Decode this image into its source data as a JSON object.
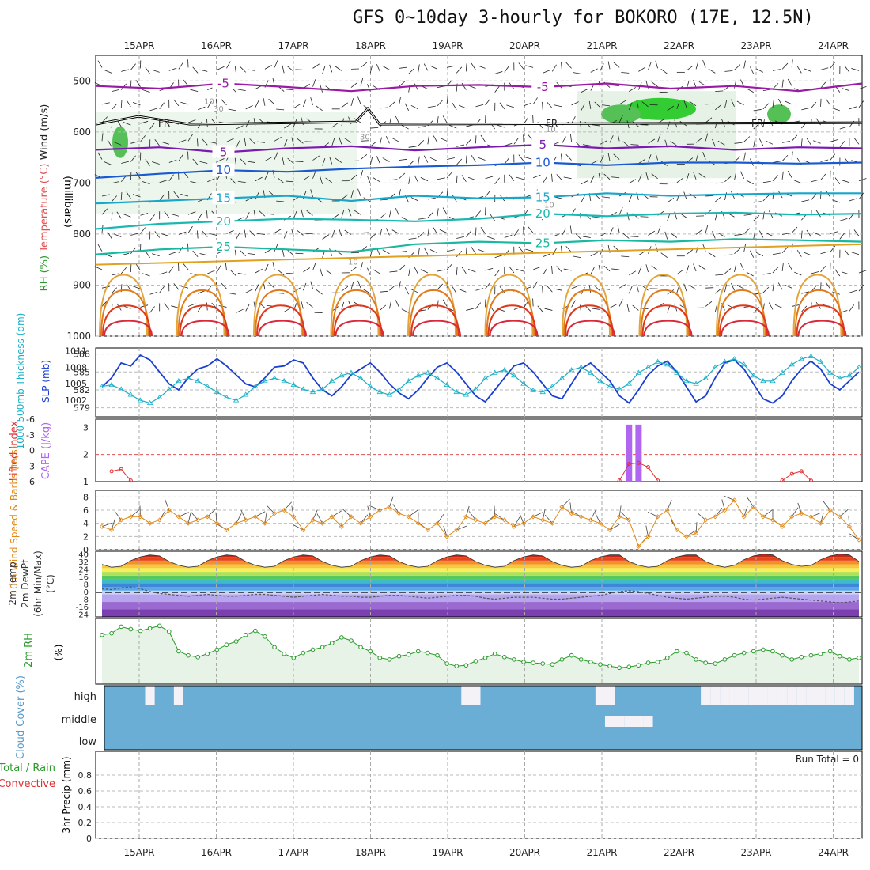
{
  "title": "GFS 0~10day 3-hourly for BOKORO (17E, 12.5N)",
  "chart_data": [
    {
      "id": "upper",
      "type": "contour",
      "ylabel_parts": [
        "Wind (m/s)",
        "Temperature (°C)",
        "RH (%)"
      ],
      "ylabel_units": "(millibars)",
      "x_labels": [
        "15APR",
        "16APR",
        "17APR",
        "18APR",
        "19APR",
        "20APR",
        "21APR",
        "22APR",
        "23APR",
        "24APR"
      ],
      "y_ticks": [
        500,
        600,
        700,
        800,
        900,
        1000
      ],
      "ylim": [
        450,
        1000
      ],
      "freezing_label": "FR",
      "freezing_level_mb": 585,
      "isotherms": [
        {
          "label": "-5",
          "mb": [
            510,
            515,
            505,
            512,
            520,
            510,
            508,
            512,
            505,
            515,
            510,
            520,
            505
          ],
          "color": "#9a1aa6"
        },
        {
          "label": "5",
          "mb": [
            635,
            630,
            640,
            632,
            628,
            636,
            630,
            625,
            632,
            628,
            635,
            630,
            632
          ],
          "color": "#7a1ab0"
        },
        {
          "label": "10",
          "mb": [
            690,
            682,
            675,
            678,
            672,
            668,
            665,
            660,
            665,
            660,
            660,
            662,
            660
          ],
          "color": "#1a5ad0"
        },
        {
          "label": "15",
          "mb": [
            740,
            735,
            730,
            725,
            735,
            725,
            730,
            728,
            720,
            725,
            722,
            720,
            720
          ],
          "color": "#19a6c8"
        },
        {
          "label": "20",
          "mb": [
            790,
            780,
            775,
            770,
            772,
            775,
            770,
            760,
            765,
            760,
            758,
            762,
            760
          ],
          "color": "#1ab8b0"
        },
        {
          "label": "25",
          "mb": [
            840,
            830,
            825,
            830,
            835,
            820,
            815,
            818,
            812,
            815,
            810,
            812,
            815
          ],
          "color": "#1ab8a0"
        }
      ],
      "contour_labels": [
        "-5",
        "5",
        "10",
        "15",
        "20",
        "25",
        "10",
        "30"
      ],
      "rh_labels": [
        "10",
        "30"
      ]
    },
    {
      "id": "thickness-slp",
      "type": "line",
      "ylabel_left": "1000-500mb Thickness (dm)",
      "ylabel_right": "SLP (mb)",
      "left_ticks": [
        579,
        582,
        585,
        588
      ],
      "right_ticks": [
        1002,
        1005,
        1008,
        1011
      ],
      "series": [
        {
          "name": "1000-500mb Thickness (dm)",
          "color": "#1a3fd0",
          "values": [
            582.5,
            584,
            586.5,
            586,
            587.8,
            587,
            585,
            583,
            582,
            584,
            585.5,
            586,
            587.2,
            586,
            584.5,
            583,
            582.5,
            584,
            585.8,
            586,
            587,
            586.5,
            584,
            582,
            581,
            582.5,
            584.5,
            585.5,
            586.5,
            585,
            583,
            581.5,
            580.5,
            582,
            584,
            585.8,
            586.5,
            585,
            583,
            581,
            580,
            582,
            584,
            586,
            586.5,
            585,
            583,
            581,
            580.5,
            583,
            585.5,
            586.5,
            585,
            583.5,
            581,
            579.8,
            582,
            584.5,
            586,
            586.8,
            585,
            582.5,
            580,
            581,
            584,
            586.5,
            587,
            585.5,
            583,
            580.5,
            579.8,
            581,
            583.5,
            585.5,
            586.8,
            585.5,
            583,
            582,
            583.5,
            585
          ]
        },
        {
          "name": "SLP (mb)",
          "color": "#1ab0c8",
          "values": [
            1004.5,
            1004.8,
            1004,
            1003,
            1002,
            1001.5,
            1002.5,
            1004,
            1005.5,
            1006,
            1005.5,
            1004.5,
            1003.5,
            1002.5,
            1002,
            1003,
            1004.5,
            1005.5,
            1006,
            1005.5,
            1004.8,
            1004,
            1003.5,
            1004,
            1005.5,
            1006.5,
            1007,
            1006,
            1004.5,
            1003.5,
            1003,
            1004,
            1005.5,
            1006.5,
            1007,
            1006,
            1004.8,
            1003.5,
            1003,
            1004,
            1006,
            1007,
            1007.5,
            1006.5,
            1005,
            1003.8,
            1003.5,
            1004.5,
            1006,
            1007.5,
            1008,
            1007,
            1005.5,
            1004.5,
            1004,
            1005,
            1007,
            1008,
            1009,
            1008.5,
            1007,
            1005.5,
            1005,
            1006,
            1008,
            1009,
            1009.5,
            1008.5,
            1006.5,
            1005.5,
            1005.5,
            1007,
            1008.5,
            1009.5,
            1010,
            1009,
            1007,
            1006,
            1006.5,
            1008
          ]
        }
      ]
    },
    {
      "id": "cape-li",
      "type": "bar+line",
      "ylabel_left": "Lifted Index",
      "ylabel_right": "CAPE (J/kg)",
      "left_ticks": [
        "-6",
        "-3",
        "0",
        "3",
        "6"
      ],
      "right_ticks": [
        "1",
        "2",
        "3"
      ],
      "cape_bars": [
        {
          "index": 55,
          "value": 3.1
        },
        {
          "index": 56,
          "value": 3.1
        }
      ],
      "lifted_index": [
        {
          "index": 1,
          "value": 4.0
        },
        {
          "index": 2,
          "value": 3.6
        },
        {
          "index": 3,
          "value": 5.8
        },
        {
          "index": 54,
          "value": 5.8
        },
        {
          "index": 55,
          "value": 2.6
        },
        {
          "index": 56,
          "value": 2.4
        },
        {
          "index": 57,
          "value": 3.2
        },
        {
          "index": 58,
          "value": 5.8
        },
        {
          "index": 71,
          "value": 5.8
        },
        {
          "index": 72,
          "value": 4.5
        },
        {
          "index": 73,
          "value": 4.0
        },
        {
          "index": 74,
          "value": 5.8
        }
      ],
      "li_reference": 0
    },
    {
      "id": "wind10m",
      "type": "line",
      "ylabel": "10m Wind Speed & Barbs (m/s)",
      "y_ticks": [
        0,
        2,
        4,
        6,
        8
      ],
      "ylim": [
        0,
        9
      ],
      "series": [
        {
          "name": "10m Wind Speed",
          "color": "#e08a1a",
          "values": [
            3.5,
            3,
            4.5,
            5,
            5,
            4,
            4.5,
            6,
            5,
            4,
            4.5,
            5,
            4,
            3,
            4,
            4.5,
            5,
            4,
            5.5,
            6,
            5,
            3,
            4.5,
            4,
            5,
            3.5,
            5,
            4,
            5,
            6,
            6.5,
            5.5,
            5,
            4,
            3,
            4,
            2,
            3,
            5,
            4.5,
            4,
            5,
            4.5,
            3.5,
            4,
            5,
            4.5,
            4,
            6.5,
            5.5,
            5,
            4.5,
            4,
            3,
            5,
            4.5,
            0.5,
            2,
            5,
            6,
            3,
            2,
            2.5,
            4.5,
            5,
            6,
            7.5,
            5,
            6.5,
            5,
            4.5,
            3.5,
            5,
            5.5,
            5,
            4,
            6,
            5,
            3.5,
            1.5
          ]
        }
      ]
    },
    {
      "id": "temp2m",
      "type": "area",
      "ylabel_lines": [
        "2m Temp",
        "2m DewPt",
        "(6hr Min/Max)",
        "(°C)"
      ],
      "y_ticks": [
        40,
        32,
        24,
        16,
        8,
        0,
        -8,
        -16,
        -24
      ],
      "ylim": [
        -26,
        44
      ],
      "series": [
        {
          "name": "2m Temp",
          "values": [
            30,
            27,
            28,
            34,
            38,
            40,
            39,
            33,
            29,
            27,
            28,
            34,
            38,
            40,
            39,
            33,
            29,
            27,
            28,
            34,
            38,
            40,
            39,
            33,
            29,
            27,
            28,
            34,
            38,
            40,
            39,
            33,
            29,
            27,
            28,
            34,
            38,
            40,
            39,
            33,
            29,
            27,
            28,
            34,
            38,
            40,
            39,
            33,
            29,
            27,
            28,
            34,
            38,
            40,
            40,
            33,
            29,
            27,
            28,
            34,
            38,
            40,
            40,
            33,
            29,
            27,
            29,
            35,
            39,
            41,
            40,
            34,
            30,
            28,
            29,
            35,
            39,
            41,
            40,
            33
          ]
        },
        {
          "name": "2m DewPt",
          "values": [
            4,
            3,
            5,
            6,
            4,
            1,
            -1,
            -2,
            -3,
            -4,
            -3,
            -2,
            -3,
            -4,
            -4,
            -3,
            -2,
            -2,
            -3,
            -4,
            -5,
            -4,
            -3,
            -2,
            -3,
            -4,
            -4,
            -5,
            -5,
            -4,
            -3,
            -3,
            -4,
            -5,
            -6,
            -5,
            -4,
            -3,
            -3,
            -4,
            -6,
            -7,
            -6,
            -5,
            -5,
            -5,
            -6,
            -7,
            -7,
            -6,
            -5,
            -4,
            -3,
            -1,
            1,
            2,
            1,
            -1,
            -3,
            -5,
            -6,
            -7,
            -6,
            -5,
            -4,
            -4,
            -5,
            -7,
            -8,
            -7,
            -6,
            -5,
            -6,
            -7,
            -8,
            -9,
            -10,
            -11,
            -10,
            -9
          ]
        }
      ]
    },
    {
      "id": "rh2m",
      "type": "area",
      "ylabel": "2m RH",
      "yunit": "(%)",
      "ylim": [
        0,
        80
      ],
      "series": [
        {
          "name": "2m RH",
          "color": "#2a9a2a",
          "values": [
            60,
            62,
            70,
            67,
            65,
            68,
            71,
            64,
            40,
            35,
            33,
            37,
            42,
            48,
            52,
            60,
            65,
            58,
            45,
            37,
            32,
            38,
            42,
            45,
            50,
            57,
            53,
            45,
            40,
            32,
            30,
            34,
            36,
            40,
            38,
            35,
            25,
            22,
            23,
            28,
            32,
            37,
            33,
            30,
            27,
            26,
            25,
            24,
            30,
            35,
            30,
            27,
            24,
            22,
            20,
            21,
            23,
            26,
            27,
            32,
            40,
            38,
            30,
            26,
            25,
            30,
            35,
            38,
            40,
            42,
            40,
            35,
            30,
            33,
            35,
            37,
            40,
            34,
            30,
            32
          ]
        }
      ]
    },
    {
      "id": "cloud",
      "type": "heatmap",
      "ylabel": "Cloud Cover (%)",
      "row_labels": [
        "high",
        "middle",
        "low"
      ],
      "clear_high": [
        [
          5,
          6
        ],
        [
          8,
          9
        ],
        [
          38,
          39
        ],
        [
          39,
          40
        ],
        [
          52,
          53
        ],
        [
          53,
          54
        ],
        [
          63,
          64
        ],
        [
          64,
          65
        ],
        [
          65,
          66
        ],
        [
          66,
          67
        ],
        [
          67,
          68
        ],
        [
          68,
          69
        ],
        [
          69,
          70
        ],
        [
          70,
          71
        ],
        [
          71,
          72
        ],
        [
          72,
          73
        ],
        [
          73,
          74
        ],
        [
          74,
          75
        ],
        [
          75,
          76
        ],
        [
          76,
          77
        ],
        [
          77,
          78
        ],
        [
          78,
          79
        ]
      ],
      "clear_mid": [
        [
          53,
          54
        ],
        [
          54,
          55
        ],
        [
          55,
          56
        ],
        [
          56,
          57
        ],
        [
          57,
          58
        ]
      ],
      "blue": "#6aaed6",
      "clear": "#f4f2f7"
    },
    {
      "id": "precip",
      "type": "bar",
      "ylabel_lines": [
        "Total / Rain",
        "Convective",
        "3hr Precip (mm)"
      ],
      "y_ticks": [
        "0",
        "0.2",
        "0.4",
        "0.6",
        "0.8"
      ],
      "ylim": [
        0,
        1
      ],
      "run_total_label": "Run Total = 0",
      "values": []
    }
  ]
}
